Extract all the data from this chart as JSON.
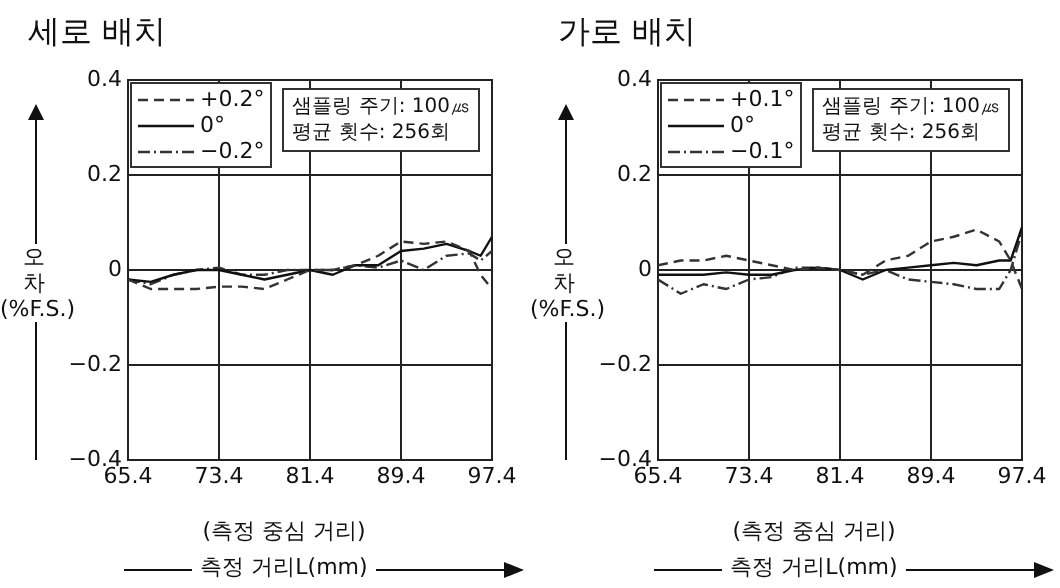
{
  "chart_data": [
    {
      "type": "line",
      "title": "세로 배치",
      "xlabel": "측정 거리L(mm)",
      "ylabel": "오차(%F.S.)",
      "annotations": [
        "(측정 중심 거리)",
        "샘플링 주기: 100㎲",
        "평균 횟수: 256회"
      ],
      "x": [
        65.4,
        67.4,
        69.4,
        71.4,
        73.4,
        75.4,
        77.4,
        79.4,
        81.4,
        83.4,
        85.4,
        87.4,
        89.4,
        91.4,
        93.4,
        95.4,
        96.4,
        97.4
      ],
      "series": [
        {
          "name": "+0.2°",
          "color": "#333333",
          "line_style": "dashed",
          "values": [
            -0.02,
            -0.04,
            -0.04,
            -0.04,
            -0.035,
            -0.035,
            -0.04,
            -0.02,
            0,
            0,
            0.01,
            0.03,
            0.06,
            0.055,
            0.06,
            0.04,
            -0.01,
            -0.04
          ]
        },
        {
          "name": "0°",
          "color": "#111111",
          "line_style": "solid",
          "values": [
            -0.02,
            -0.025,
            -0.01,
            0,
            0,
            -0.01,
            -0.02,
            -0.01,
            0,
            -0.01,
            0.01,
            0.01,
            0.04,
            0.045,
            0.055,
            0.04,
            0.03,
            0.07
          ]
        },
        {
          "name": "−0.2°",
          "color": "#333333",
          "line_style": "dashdot",
          "values": [
            -0.02,
            -0.03,
            -0.01,
            0,
            0.005,
            -0.01,
            -0.01,
            0,
            0,
            0,
            0.01,
            0.005,
            0.02,
            0,
            0.03,
            0.035,
            0.02,
            0.04
          ]
        }
      ],
      "xlim": [
        65.4,
        97.4
      ],
      "xticks": [
        65.4,
        73.4,
        81.4,
        89.4,
        97.4
      ],
      "ylim": [
        -0.4,
        0.4
      ],
      "yticks": [
        -0.4,
        -0.2,
        0,
        0.2,
        0.4
      ],
      "grid": true,
      "legend": "top left"
    },
    {
      "type": "line",
      "title": "가로 배치",
      "xlabel": "측정 거리L(mm)",
      "ylabel": "오차(%F.S.)",
      "annotations": [
        "(측정 중심 거리)",
        "샘플링 주기: 100㎲",
        "평균 횟수: 256회"
      ],
      "x": [
        65.4,
        67.4,
        69.4,
        71.4,
        73.4,
        75.4,
        77.4,
        79.4,
        81.4,
        83.4,
        85.4,
        87.4,
        89.4,
        91.4,
        93.4,
        95.4,
        96.4,
        97.4
      ],
      "series": [
        {
          "name": "+0.1°",
          "color": "#333333",
          "line_style": "dashed",
          "values": [
            0.01,
            0.02,
            0.02,
            0.03,
            0.02,
            0.01,
            0,
            0.005,
            0,
            -0.01,
            0.02,
            0.03,
            0.06,
            0.07,
            0.085,
            0.06,
            0.02,
            -0.04
          ]
        },
        {
          "name": "0°",
          "color": "#111111",
          "line_style": "solid",
          "values": [
            -0.01,
            -0.01,
            -0.01,
            -0.005,
            -0.01,
            -0.01,
            0,
            0.005,
            0,
            -0.02,
            0,
            0.005,
            0.01,
            0.015,
            0.01,
            0.02,
            0.02,
            0.09
          ]
        },
        {
          "name": "−0.1°",
          "color": "#333333",
          "line_style": "dashdot",
          "values": [
            -0.02,
            -0.05,
            -0.03,
            -0.04,
            -0.02,
            -0.015,
            0.005,
            0.005,
            0,
            -0.01,
            0,
            -0.02,
            -0.025,
            -0.03,
            -0.04,
            -0.04,
            0,
            0.08
          ]
        }
      ],
      "xlim": [
        65.4,
        97.4
      ],
      "xticks": [
        65.4,
        73.4,
        81.4,
        89.4,
        97.4
      ],
      "ylim": [
        -0.4,
        0.4
      ],
      "yticks": [
        -0.4,
        -0.2,
        0,
        0.2,
        0.4
      ],
      "grid": true,
      "legend": "top left"
    }
  ]
}
